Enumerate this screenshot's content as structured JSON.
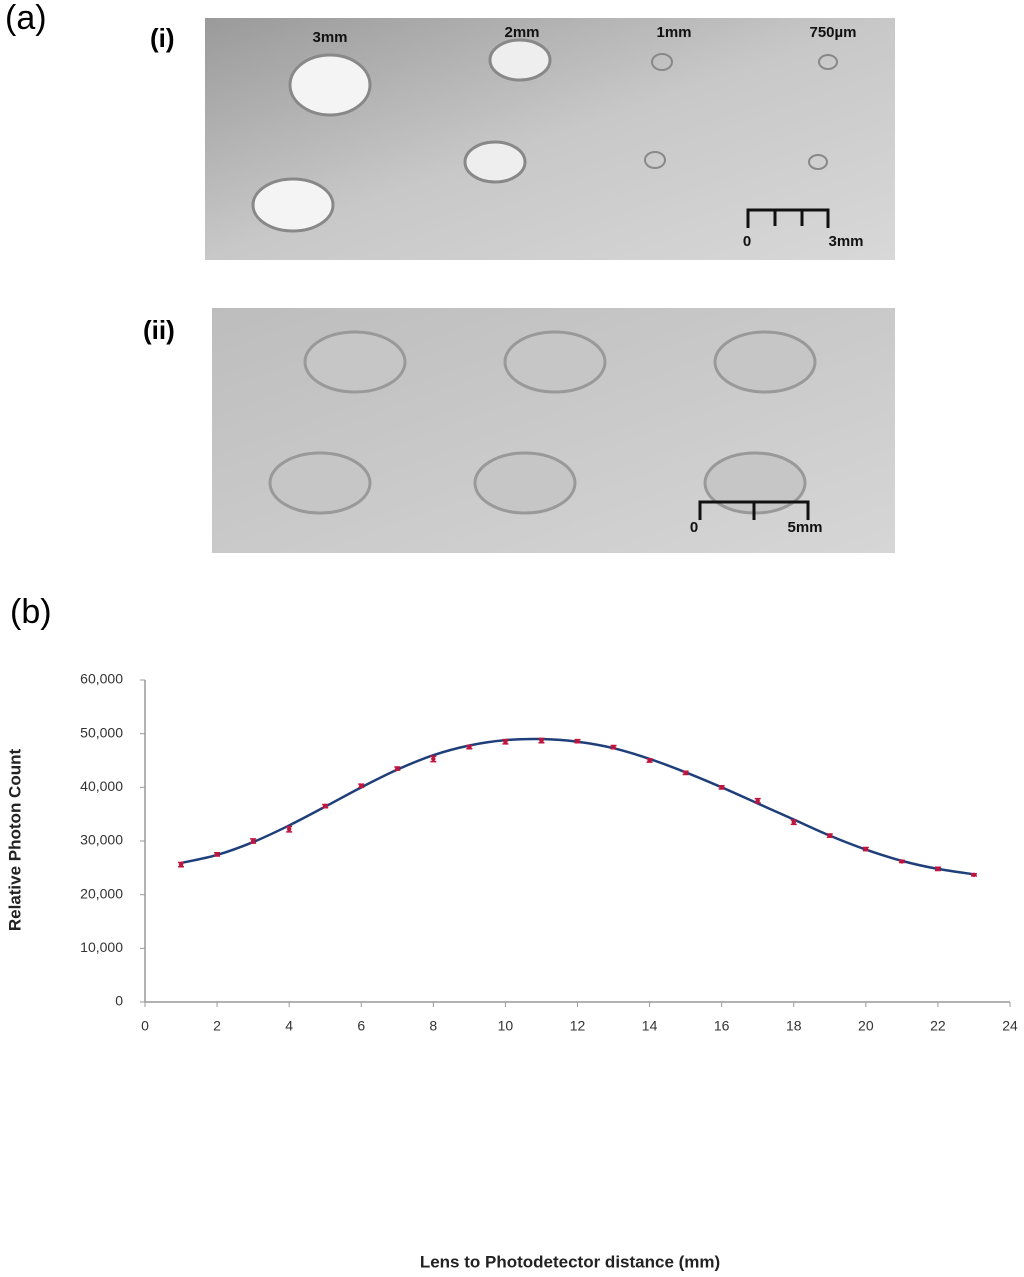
{
  "figure": {
    "panel_a": {
      "label": "(a)",
      "photos": [
        {
          "label": "(i)",
          "annotations": [
            "3mm",
            "2mm",
            "1mm",
            "750µm"
          ],
          "scale": [
            "0",
            "3mm"
          ]
        },
        {
          "label": "(ii)",
          "scale": [
            "0",
            "5mm"
          ]
        }
      ]
    },
    "panel_b": {
      "label": "(b)"
    }
  },
  "chart_data": {
    "type": "scatter",
    "x_label": "Lens to Photodetector distance (mm)",
    "y_label": "Relative Photon Count",
    "x": [
      1,
      2,
      3,
      4,
      5,
      6,
      7,
      8,
      9,
      10,
      11,
      12,
      13,
      14,
      15,
      16,
      17,
      18,
      19,
      20,
      21,
      22,
      23
    ],
    "values": [
      25600,
      27500,
      30000,
      32200,
      36500,
      40300,
      43500,
      45300,
      47500,
      48500,
      48700,
      48600,
      47500,
      45000,
      42700,
      40000,
      37500,
      33500,
      31000,
      28500,
      26200,
      24800,
      23700
    ],
    "errors": [
      400,
      300,
      400,
      500,
      300,
      300,
      300,
      500,
      300,
      400,
      400,
      300,
      300,
      300,
      300,
      300,
      400,
      400,
      300,
      300,
      200,
      300,
      200
    ],
    "fit": [
      25900,
      27400,
      29800,
      32900,
      36400,
      40000,
      43300,
      46000,
      47800,
      48800,
      49000,
      48500,
      47300,
      45300,
      42800,
      40000,
      37000,
      34000,
      31000,
      28400,
      26300,
      24800,
      23800
    ],
    "color": "#c0143c",
    "fit_color": "#1f3f7a",
    "xlim": [
      0,
      24
    ],
    "xticks": [
      0,
      2,
      4,
      6,
      8,
      10,
      12,
      14,
      16,
      18,
      20,
      22,
      24
    ],
    "ylim": [
      0,
      60000
    ],
    "yticks": [
      0,
      {
        "value": 10000,
        "label": "10,000"
      },
      {
        "value": 20000,
        "label": "20,000"
      },
      {
        "value": 30000,
        "label": "30,000"
      },
      {
        "value": 40000,
        "label": "40,000"
      },
      {
        "value": 50000,
        "label": "50,000"
      },
      {
        "value": 60000,
        "label": "60,000"
      }
    ]
  }
}
